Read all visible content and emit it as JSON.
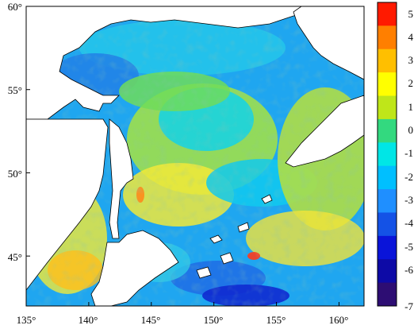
{
  "map": {
    "lon_range": [
      135,
      162
    ],
    "lat_range": [
      42,
      60
    ],
    "y_ticks": [
      {
        "value": 60,
        "label": "60°"
      },
      {
        "value": 55,
        "label": "55°"
      },
      {
        "value": 50,
        "label": "50°"
      },
      {
        "value": 45,
        "label": "45°"
      }
    ],
    "x_ticks": [
      {
        "value": 135,
        "label": "135°"
      },
      {
        "value": 140,
        "label": "140°"
      },
      {
        "value": 145,
        "label": "145°"
      },
      {
        "value": 150,
        "label": "150°"
      },
      {
        "value": 155,
        "label": "155°"
      },
      {
        "value": 160,
        "label": "160°"
      }
    ],
    "land_color": "#ffffff",
    "coastline_color": "#000000"
  },
  "colorbar": {
    "labels": [
      "5",
      "4",
      "3",
      "2",
      "1",
      "0",
      "-1",
      "-2",
      "-3",
      "-4",
      "-5",
      "-6",
      "-7"
    ],
    "colors": [
      "#ff1a00",
      "#ff7f00",
      "#ffbf00",
      "#ffff00",
      "#bfe619",
      "#33d97f",
      "#00e6e6",
      "#00bfff",
      "#1f8fff",
      "#1452e6",
      "#0a14d9",
      "#0d0aa6",
      "#2d0d73"
    ]
  }
}
